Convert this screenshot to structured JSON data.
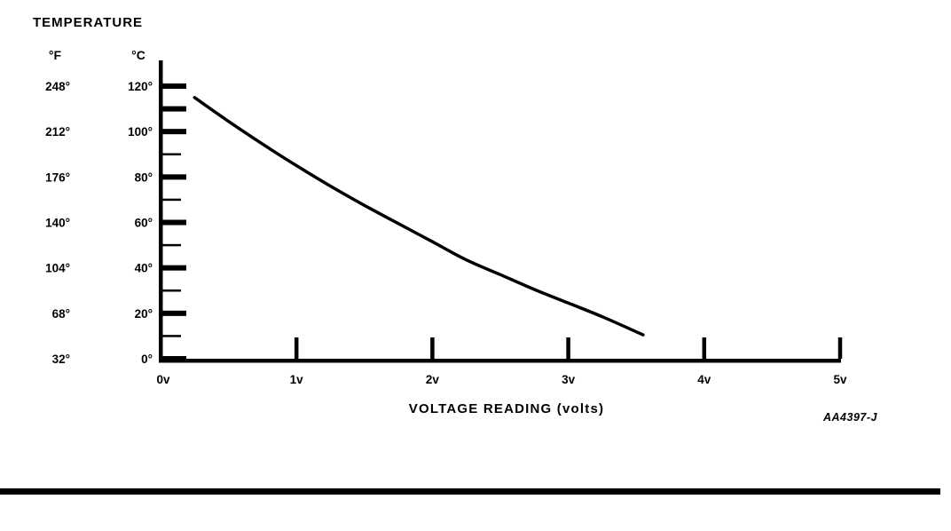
{
  "chart_data": {
    "type": "line",
    "title": "TEMPERATURE",
    "xlabel": "VOLTAGE READING (volts)",
    "figure_code": "AA4397-J",
    "color": "#000000",
    "x_axis": {
      "xlim": [
        0,
        5
      ],
      "ticks": [
        {
          "label": "0v",
          "value": 0
        },
        {
          "label": "1v",
          "value": 1
        },
        {
          "label": "2v",
          "value": 2
        },
        {
          "label": "3v",
          "value": 3
        },
        {
          "label": "4v",
          "value": 4
        },
        {
          "label": "5v",
          "value": 5
        }
      ]
    },
    "y_axis": {
      "f_header": "°F",
      "c_header": "°C",
      "ylim_c": [
        0,
        120
      ],
      "rows": [
        {
          "f": "248°",
          "c": "120°",
          "value_c": 120
        },
        {
          "f": "212°",
          "c": "100°",
          "value_c": 100
        },
        {
          "f": "176°",
          "c": "80°",
          "value_c": 80
        },
        {
          "f": "140°",
          "c": "60°",
          "value_c": 60
        },
        {
          "f": "104°",
          "c": "40°",
          "value_c": 40
        },
        {
          "f": "68°",
          "c": "20°",
          "value_c": 20
        },
        {
          "f": "32°",
          "c": "0°",
          "value_c": 0
        }
      ],
      "thick_ticks_c": [
        120,
        110,
        100,
        80,
        60,
        40,
        20,
        0
      ],
      "thin_ticks_c": [
        90,
        70,
        50,
        30,
        10
      ]
    },
    "series": [
      {
        "name": "temperature-vs-voltage",
        "x_volts": [
          0.25,
          0.5,
          0.75,
          1.0,
          1.25,
          1.5,
          1.75,
          2.0,
          2.25,
          2.5,
          2.75,
          3.0,
          3.25,
          3.55
        ],
        "y_celsius": [
          115,
          104.5,
          94.5,
          85,
          76,
          67.5,
          59.5,
          51.5,
          43.5,
          37,
          30.5,
          24.5,
          18.5,
          10.5
        ]
      }
    ]
  }
}
